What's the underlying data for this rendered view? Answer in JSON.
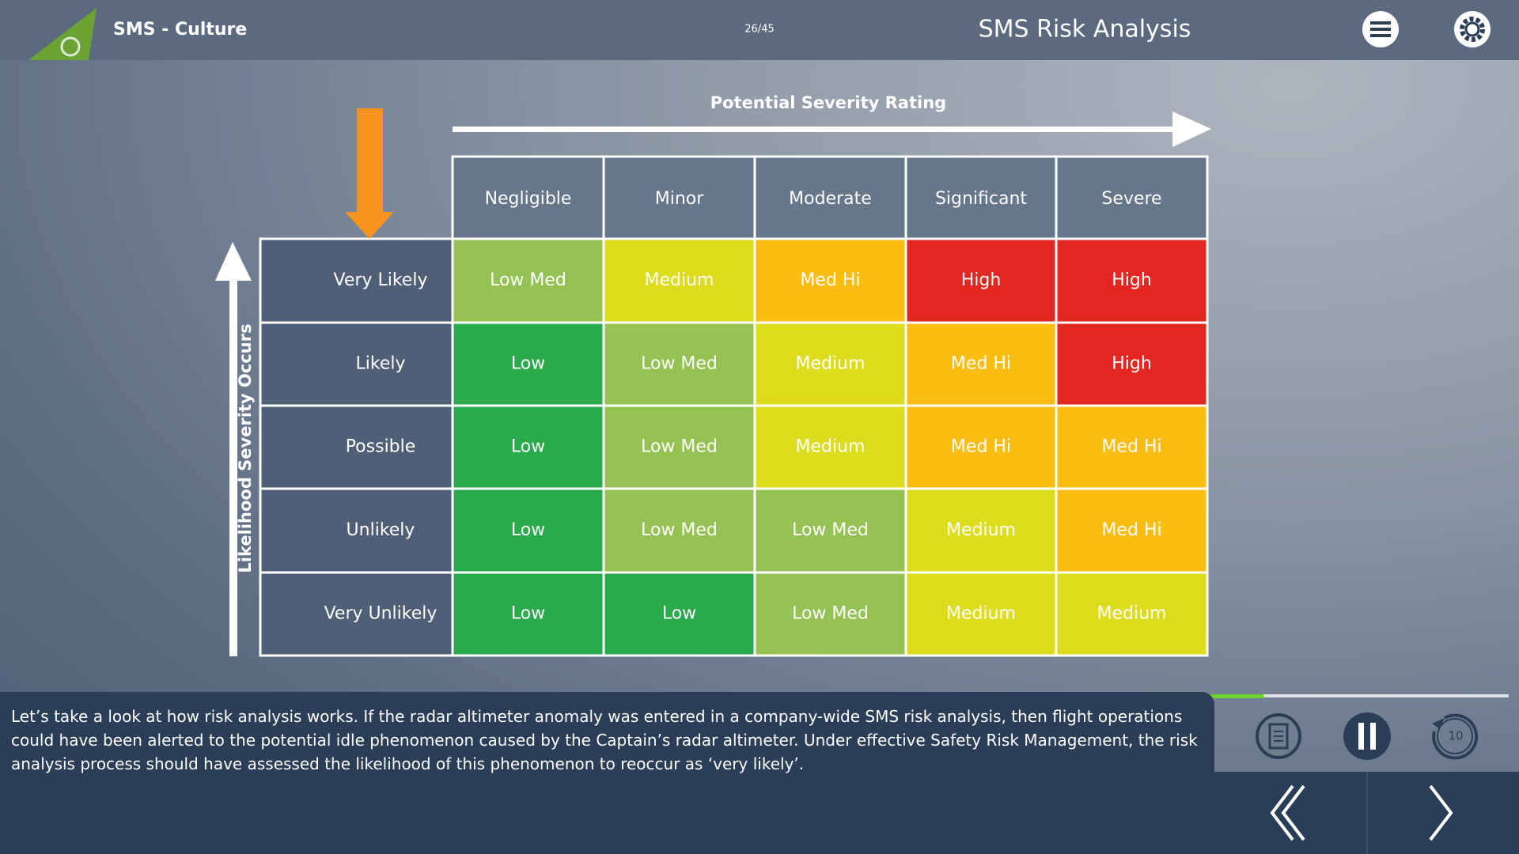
{
  "header": {
    "course_title": "SMS - Culture",
    "page_counter": "26/45",
    "slide_title": "SMS Risk Analysis"
  },
  "matrix": {
    "x_axis_label": "Potential Severity Rating",
    "y_axis_label": "Likelihood Severity Occurs",
    "columns": [
      "Negligible",
      "Minor",
      "Moderate",
      "Significant",
      "Severe"
    ],
    "rows": [
      "Very Likely",
      "Likely",
      "Possible",
      "Unlikely",
      "Very Unlikely"
    ],
    "cells": [
      [
        "Low Med",
        "Medium",
        "Med Hi",
        "High",
        "High"
      ],
      [
        "Low",
        "Low Med",
        "Medium",
        "Med Hi",
        "High"
      ],
      [
        "Low",
        "Low Med",
        "Medium",
        "Med Hi",
        "Med Hi"
      ],
      [
        "Low",
        "Low Med",
        "Low Med",
        "Medium",
        "Med Hi"
      ],
      [
        "Low",
        "Low",
        "Low Med",
        "Medium",
        "Medium"
      ]
    ],
    "level_colors": {
      "Low": "#2aab4b",
      "Low Med": "#95c353",
      "Medium": "#dedd1d",
      "Med Hi": "#fbbd12",
      "High": "#e42620"
    }
  },
  "narration": "Let’s take a look at how risk analysis works. If the radar altimeter anomaly was entered in a company-wide SMS risk analysis, then flight operations could have been alerted to the potential idle phenomenon caused by the Captain’s radar altimeter. Under effective Safety Risk Management, the risk analysis process should have assessed the likelihood of this phenomenon to reoccur as ‘very likely’.",
  "player": {
    "rewind_label": "10",
    "progress": 19
  }
}
